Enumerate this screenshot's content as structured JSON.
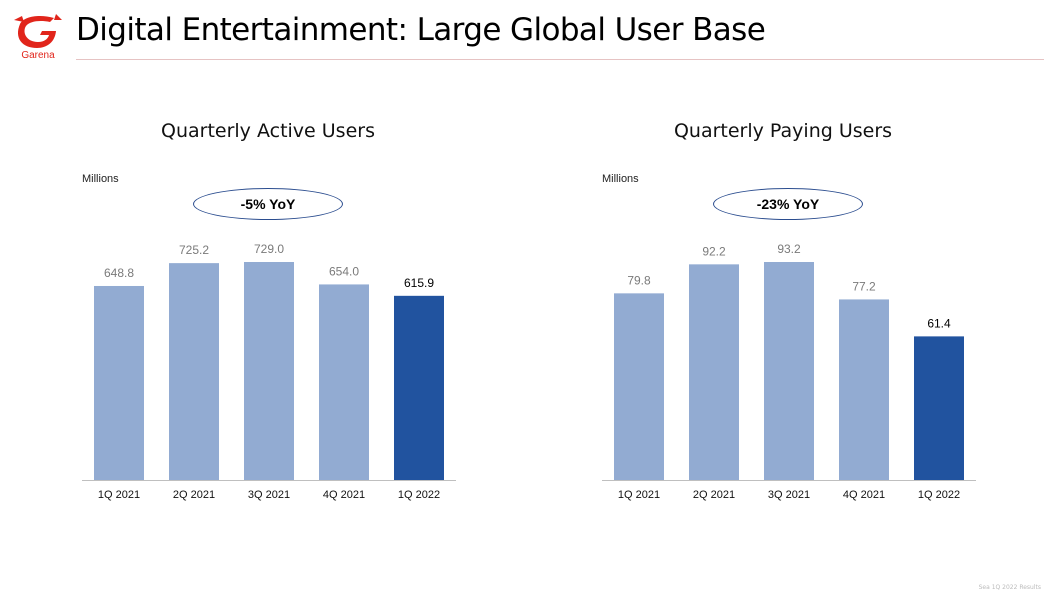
{
  "header": {
    "title": "Digital Entertainment: Large Global User Base",
    "brand": "Garena",
    "logo_icon": "garena-logo-icon",
    "accent_color": "#e1251b"
  },
  "colors": {
    "bar_prior": "#92abd2",
    "bar_latest": "#21539f",
    "oval_border": "#2b4d8f"
  },
  "chart_data": [
    {
      "type": "bar",
      "title": "Quarterly Active Users",
      "unit_label": "Millions",
      "yoy_label": "-5% YoY",
      "categories": [
        "1Q 2021",
        "2Q 2021",
        "3Q 2021",
        "4Q 2021",
        "1Q 2022"
      ],
      "values": [
        648.8,
        725.2,
        729.0,
        654.0,
        615.9
      ],
      "value_labels": [
        "648.8",
        "725.2",
        "729.0",
        "654.0",
        "615.9"
      ],
      "highlight_last": true,
      "ylim": [
        0,
        729.0
      ],
      "xlabel": "",
      "ylabel": ""
    },
    {
      "type": "bar",
      "title": "Quarterly Paying Users",
      "unit_label": "Millions",
      "yoy_label": "-23% YoY",
      "categories": [
        "1Q 2021",
        "2Q 2021",
        "3Q 2021",
        "4Q 2021",
        "1Q 2022"
      ],
      "values": [
        79.8,
        92.2,
        93.2,
        77.2,
        61.4
      ],
      "value_labels": [
        "79.8",
        "92.2",
        "93.2",
        "77.2",
        "61.4"
      ],
      "highlight_last": true,
      "ylim": [
        0,
        93.2
      ],
      "xlabel": "",
      "ylabel": ""
    }
  ],
  "footer": {
    "note": "Sea 1Q 2022 Results"
  }
}
